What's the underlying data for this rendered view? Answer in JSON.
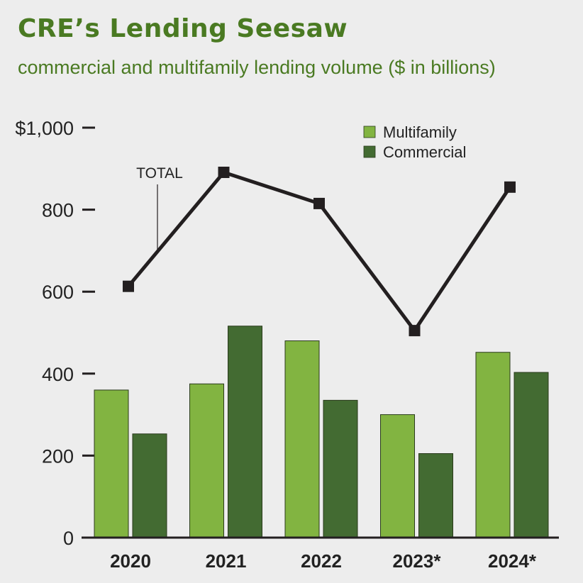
{
  "chart_data": {
    "type": "bar",
    "title": "CRE’s Lending Seesaw",
    "subtitle": "commercial and multifamily lending volume ($ in billions)",
    "categories": [
      "2020",
      "2021",
      "2022",
      "2023*",
      "2024*"
    ],
    "series": [
      {
        "name": "Multifamily",
        "values": [
          360,
          375,
          480,
          300,
          452
        ],
        "color": "#82b441"
      },
      {
        "name": "Commercial",
        "values": [
          253,
          516,
          335,
          205,
          403
        ],
        "color": "#436b32"
      }
    ],
    "line": {
      "label": "TOTAL",
      "values": [
        613,
        891,
        815,
        505,
        855
      ],
      "color": "#231f20"
    },
    "ylim": [
      0,
      1000
    ],
    "yticks": [
      0,
      200,
      400,
      600,
      800,
      1000
    ],
    "ytick_labels": [
      "0",
      "200",
      "400",
      "600",
      "800",
      "$1,000"
    ],
    "xlabel": "",
    "ylabel": "",
    "grid": false,
    "legend_position": "top-right"
  }
}
